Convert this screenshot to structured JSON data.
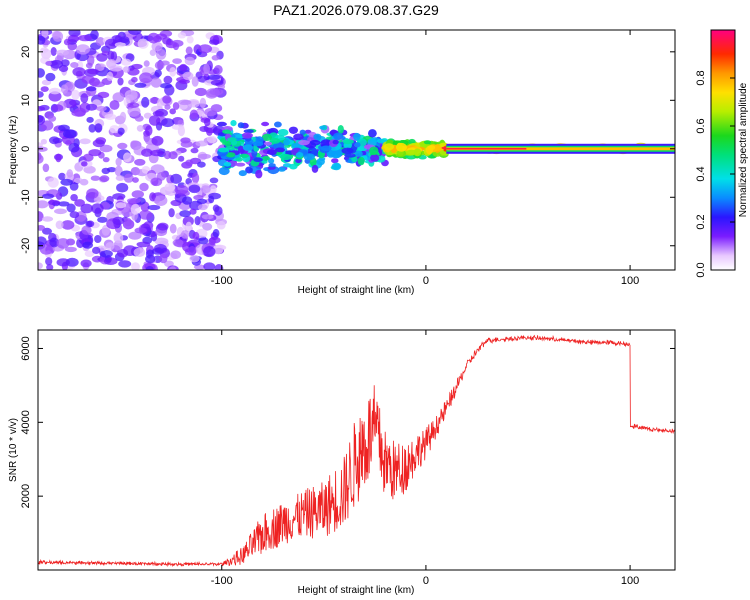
{
  "title": "PAZ1.2026.079.08.37.G29",
  "chart_data": [
    {
      "type": "heatmap",
      "name": "spectrogram",
      "xlabel": "Height of straight line (km)",
      "ylabel": "Frequency (Hz)",
      "xlim": [
        -190,
        122
      ],
      "ylim": [
        -25,
        24.5
      ],
      "xticks": [
        -100,
        0,
        100
      ],
      "xtick_labels": [
        "-100",
        "0",
        "100"
      ],
      "yticks": [
        -20,
        -10,
        0,
        10,
        20
      ],
      "ytick_labels": [
        "-20",
        "-10",
        "0",
        "10",
        "20"
      ],
      "description_regions": [
        {
          "x_range": [
            -190,
            -100
          ],
          "freq_range": [
            -25,
            24.5
          ],
          "amplitude": [
            0.05,
            0.2
          ],
          "pattern": "scattered noise"
        },
        {
          "x_range": [
            -100,
            -20
          ],
          "freq_range": [
            -8,
            8
          ],
          "amplitude": [
            0.1,
            0.5
          ],
          "pattern": "scattered clusters near 0 Hz"
        },
        {
          "x_range": [
            -20,
            10
          ],
          "freq_range": [
            -2,
            2
          ],
          "amplitude": [
            0.4,
            0.8
          ],
          "pattern": "tightening line"
        },
        {
          "x_range": [
            10,
            122
          ],
          "freq_range": [
            -1,
            1
          ],
          "amplitude": [
            0.7,
            1.0
          ],
          "pattern": "narrow line at 0 Hz"
        }
      ],
      "colorbar": {
        "label": "Normalized spectral amplitude",
        "range": [
          0,
          1
        ],
        "ticks": [
          0.0,
          0.2,
          0.4,
          0.6,
          0.8
        ],
        "tick_labels": [
          "0.0",
          "0.2",
          "0.4",
          "0.6",
          "0.8"
        ]
      }
    },
    {
      "type": "line",
      "name": "snr",
      "xlabel": "Height of straight line (km)",
      "ylabel": "SNR (10 * v/v)",
      "xlim": [
        -190,
        122
      ],
      "ylim": [
        0,
        6500
      ],
      "xticks": [
        -100,
        0,
        100
      ],
      "xtick_labels": [
        "-100",
        "0",
        "100"
      ],
      "yticks": [
        2000,
        4000,
        6000
      ],
      "ytick_labels": [
        "2000",
        "4000",
        "6000"
      ],
      "color": "#ee2222",
      "series": [
        {
          "name": "SNR",
          "x": [
            -190,
            -160,
            -120,
            -100,
            -90,
            -80,
            -70,
            -60,
            -50,
            -40,
            -35,
            -30,
            -25,
            -20,
            -15,
            -10,
            -5,
            0,
            5,
            10,
            15,
            20,
            25,
            30,
            40,
            50,
            60,
            70,
            80,
            90,
            99,
            100,
            110,
            122
          ],
          "values": [
            200,
            180,
            150,
            150,
            300,
            800,
            1100,
            1300,
            1400,
            1800,
            2500,
            3000,
            3500,
            2600,
            2400,
            2600,
            3000,
            3300,
            3800,
            4300,
            4900,
            5500,
            5900,
            6200,
            6250,
            6280,
            6250,
            6200,
            6150,
            6150,
            6100,
            3900,
            3800,
            3750
          ],
          "spread": [
            50,
            40,
            40,
            50,
            400,
            900,
            1000,
            1100,
            1300,
            1700,
            2000,
            2200,
            2000,
            1600,
            1400,
            1200,
            900,
            700,
            500,
            400,
            300,
            200,
            150,
            100,
            80,
            80,
            80,
            80,
            80,
            80,
            80,
            80,
            60,
            60
          ]
        }
      ]
    }
  ]
}
